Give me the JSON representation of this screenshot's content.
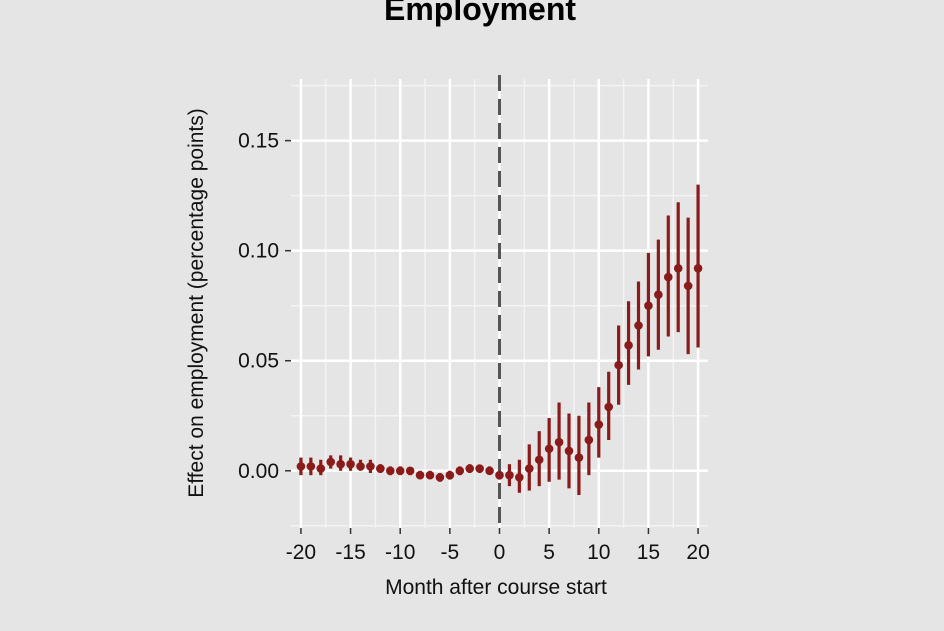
{
  "chart_data": {
    "type": "scatter",
    "title": "Employment",
    "xlabel": "Month after course start",
    "ylabel": "Effect on employment (percentage points)",
    "xlim": [
      -21,
      21
    ],
    "ylim": [
      -0.026,
      0.178
    ],
    "x_ticks": [
      -20,
      -15,
      -10,
      -5,
      0,
      5,
      10,
      15,
      20
    ],
    "x_tick_labels": [
      "-20",
      "-15",
      "-10",
      "-5",
      "0",
      "5",
      "10",
      "15",
      "20"
    ],
    "y_ticks": [
      0.0,
      0.05,
      0.1,
      0.15
    ],
    "y_tick_labels": [
      "0.00",
      "0.05",
      "0.10",
      "0.15"
    ],
    "grid": true,
    "reference_line": {
      "x": 0,
      "style": "dashed",
      "color": "#555555"
    },
    "point_color": "#8b1a1a",
    "series": [
      {
        "name": "",
        "points": [
          {
            "x": -20,
            "y": 0.002,
            "lo": -0.002,
            "hi": 0.006
          },
          {
            "x": -19,
            "y": 0.002,
            "lo": -0.002,
            "hi": 0.006
          },
          {
            "x": -18,
            "y": 0.001,
            "lo": -0.002,
            "hi": 0.005
          },
          {
            "x": -17,
            "y": 0.004,
            "lo": 0.001,
            "hi": 0.007
          },
          {
            "x": -16,
            "y": 0.003,
            "lo": 0.0,
            "hi": 0.007
          },
          {
            "x": -15,
            "y": 0.003,
            "lo": 0.0,
            "hi": 0.006
          },
          {
            "x": -14,
            "y": 0.002,
            "lo": 0.0,
            "hi": 0.005
          },
          {
            "x": -13,
            "y": 0.002,
            "lo": -0.001,
            "hi": 0.005
          },
          {
            "x": -12,
            "y": 0.001,
            "lo": -0.001,
            "hi": 0.003
          },
          {
            "x": -11,
            "y": 0.0,
            "lo": -0.002,
            "hi": 0.002
          },
          {
            "x": -10,
            "y": 0.0,
            "lo": -0.002,
            "hi": 0.002
          },
          {
            "x": -9,
            "y": 0.0,
            "lo": -0.002,
            "hi": 0.001
          },
          {
            "x": -8,
            "y": -0.002,
            "lo": -0.003,
            "hi": 0.0
          },
          {
            "x": -7,
            "y": -0.002,
            "lo": -0.003,
            "hi": 0.0
          },
          {
            "x": -6,
            "y": -0.003,
            "lo": -0.005,
            "hi": -0.001
          },
          {
            "x": -5,
            "y": -0.002,
            "lo": -0.004,
            "hi": 0.0
          },
          {
            "x": -4,
            "y": 0.0,
            "lo": -0.002,
            "hi": 0.002
          },
          {
            "x": -3,
            "y": 0.001,
            "lo": -0.001,
            "hi": 0.003
          },
          {
            "x": -2,
            "y": 0.001,
            "lo": -0.001,
            "hi": 0.002
          },
          {
            "x": -1,
            "y": 0.0,
            "lo": -0.001,
            "hi": 0.002
          },
          {
            "x": 0,
            "y": -0.002,
            "lo": -0.004,
            "hi": 0.0
          },
          {
            "x": 1,
            "y": -0.002,
            "lo": -0.007,
            "hi": 0.003
          },
          {
            "x": 2,
            "y": -0.003,
            "lo": -0.01,
            "hi": 0.005
          },
          {
            "x": 3,
            "y": 0.001,
            "lo": -0.009,
            "hi": 0.012
          },
          {
            "x": 4,
            "y": 0.005,
            "lo": -0.007,
            "hi": 0.018
          },
          {
            "x": 5,
            "y": 0.01,
            "lo": -0.005,
            "hi": 0.024
          },
          {
            "x": 6,
            "y": 0.013,
            "lo": -0.004,
            "hi": 0.031
          },
          {
            "x": 7,
            "y": 0.009,
            "lo": -0.008,
            "hi": 0.026
          },
          {
            "x": 8,
            "y": 0.006,
            "lo": -0.011,
            "hi": 0.025
          },
          {
            "x": 9,
            "y": 0.014,
            "lo": -0.002,
            "hi": 0.031
          },
          {
            "x": 10,
            "y": 0.021,
            "lo": 0.006,
            "hi": 0.038
          },
          {
            "x": 11,
            "y": 0.029,
            "lo": 0.014,
            "hi": 0.045
          },
          {
            "x": 12,
            "y": 0.048,
            "lo": 0.03,
            "hi": 0.066
          },
          {
            "x": 13,
            "y": 0.057,
            "lo": 0.039,
            "hi": 0.077
          },
          {
            "x": 14,
            "y": 0.066,
            "lo": 0.046,
            "hi": 0.086
          },
          {
            "x": 15,
            "y": 0.075,
            "lo": 0.052,
            "hi": 0.099
          },
          {
            "x": 16,
            "y": 0.08,
            "lo": 0.055,
            "hi": 0.105
          },
          {
            "x": 17,
            "y": 0.088,
            "lo": 0.061,
            "hi": 0.116
          },
          {
            "x": 18,
            "y": 0.092,
            "lo": 0.063,
            "hi": 0.122
          },
          {
            "x": 19,
            "y": 0.084,
            "lo": 0.053,
            "hi": 0.115
          },
          {
            "x": 20,
            "y": 0.092,
            "lo": 0.056,
            "hi": 0.13
          }
        ]
      }
    ]
  }
}
